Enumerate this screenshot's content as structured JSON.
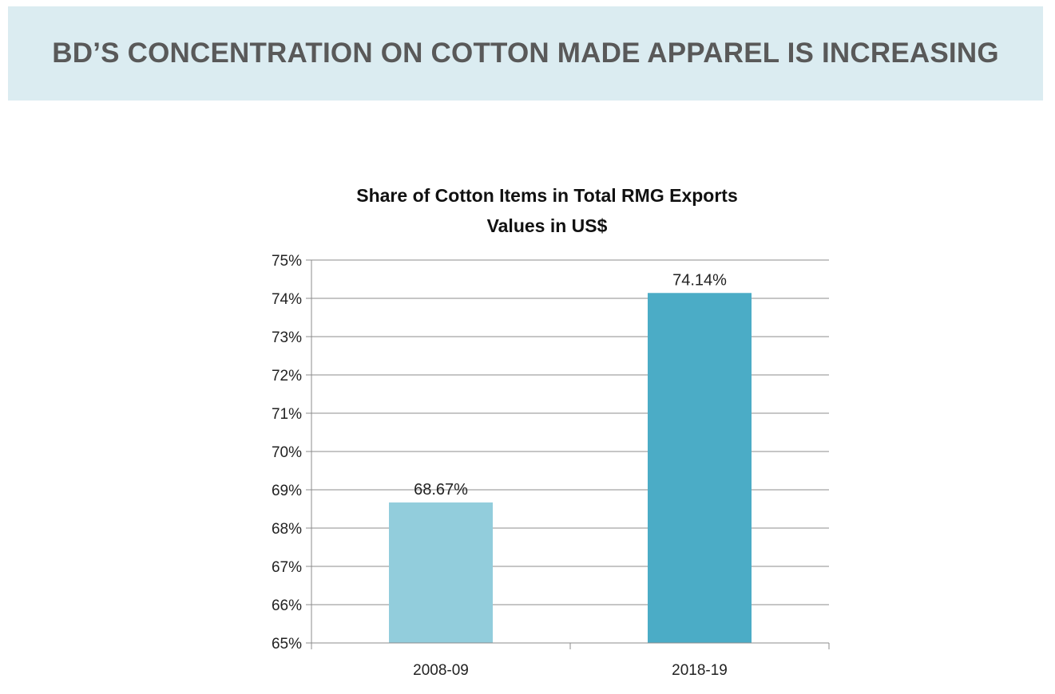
{
  "header": {
    "title": "BD’S CONCENTRATION ON COTTON MADE APPAREL IS INCREASING"
  },
  "chart_data": {
    "type": "bar",
    "title_lines": [
      "Share of Cotton Items in Total RMG Exports",
      "Values in US$"
    ],
    "categories": [
      "2008-09",
      "2018-19"
    ],
    "values": [
      68.67,
      74.14
    ],
    "data_labels": [
      "68.67%",
      "74.14%"
    ],
    "bar_colors": [
      "#92cddc",
      "#4bacc6"
    ],
    "ylim": [
      65,
      75
    ],
    "yticks": [
      65,
      66,
      67,
      68,
      69,
      70,
      71,
      72,
      73,
      74,
      75
    ],
    "ytick_labels": [
      "65%",
      "66%",
      "67%",
      "68%",
      "69%",
      "70%",
      "71%",
      "72%",
      "73%",
      "74%",
      "75%"
    ],
    "grid": true,
    "legend": "none"
  }
}
